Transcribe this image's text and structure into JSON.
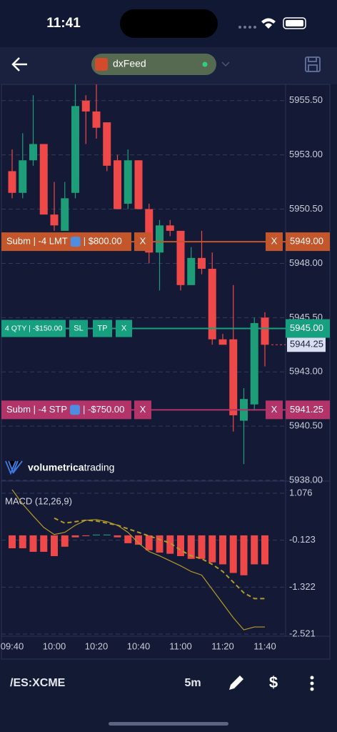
{
  "status_bar": {
    "time": "11:41"
  },
  "header": {
    "feed": "dxFeed"
  },
  "watermark": {
    "brand": "volumetrica",
    "suffix": "trading"
  },
  "footer": {
    "symbol": "/ES:XCME",
    "timeframe": "5m",
    "price_button": "$"
  },
  "chart_data": [
    {
      "type": "candlestick",
      "up_color": "#1e9e78",
      "down_color": "#ef4848",
      "grid": true,
      "categories": [
        "09:40",
        null,
        null,
        null,
        "10:00",
        null,
        null,
        null,
        "10:20",
        null,
        null,
        null,
        "10:40",
        null,
        null,
        null,
        "11:00",
        null,
        null,
        null,
        "11:20",
        null,
        null,
        null,
        "11:40"
      ],
      "open": [
        5952.25,
        5951.25,
        5952.75,
        5953.5,
        5950.25,
        5949.5,
        5951.25,
        5955.5,
        5955,
        5954.5,
        5952.75,
        5950.75,
        5952.75,
        5950.5,
        5948.5,
        5949.75,
        5949.5,
        5947,
        5948.25,
        5947.75,
        5944.5,
        5944.5,
        5940.75,
        5941.5,
        5945.5
      ],
      "high": [
        5953.25,
        5954,
        5955.75,
        5953.5,
        5951.75,
        5951.75,
        5956.25,
        5955.75,
        5956.25,
        5954.5,
        5953,
        5953.25,
        5952.75,
        5950.75,
        5950,
        5950,
        5949.5,
        5948.75,
        5949.5,
        5948.5,
        5944.75,
        5947,
        5942.25,
        5945.5,
        5945.75
      ],
      "low": [
        5951,
        5951,
        5952.5,
        5950.25,
        5949.5,
        5949.5,
        5951,
        5953.5,
        5953.75,
        5952.25,
        5950.5,
        5950.5,
        5950.5,
        5948,
        5946.75,
        5949.25,
        5946.75,
        5947,
        5947.5,
        5944.25,
        5944.25,
        5940.25,
        5938.75,
        5941.25,
        5943.25
      ],
      "close": [
        5951.25,
        5952.75,
        5953.5,
        5950.25,
        5949.75,
        5951,
        5955.25,
        5955,
        5954.25,
        5952.5,
        5950.5,
        5952.75,
        5950.5,
        5948.5,
        5949.75,
        5949.5,
        5947,
        5948.25,
        5947.75,
        5944.5,
        5944.25,
        5941,
        5941.75,
        5945.25,
        5944.25
      ],
      "ylim": [
        5938,
        5956.25
      ],
      "yticks": [
        {
          "value": 5938,
          "label": "5938.00"
        },
        {
          "value": 5940.5,
          "label": "5940.50"
        },
        {
          "value": 5943,
          "label": "5943.00"
        },
        {
          "value": 5945.5,
          "label": "5945.50"
        },
        {
          "value": 5948,
          "label": "5948.00"
        },
        {
          "value": 5950.5,
          "label": "5950.50"
        },
        {
          "value": 5953,
          "label": "5953.00"
        },
        {
          "value": 5955.5,
          "label": "5955.50"
        }
      ],
      "last_price": 5944.25,
      "orders": [
        {
          "text": "Subm | -4 LMT",
          "amount": "| $800.00",
          "cancel": "X",
          "color": "#c4562b",
          "price": {
            "value": 5949,
            "label": "5949.00"
          }
        },
        {
          "text": "Subm | -4 STP",
          "amount": "| -$750.00",
          "cancel": "X",
          "color": "#b23468",
          "price": {
            "value": 5941.25,
            "label": "5941.25"
          }
        }
      ],
      "position": {
        "text": "4 QTY | -$150.00",
        "buttons": [
          "SL",
          "TP",
          "X"
        ],
        "color": "#17a07f",
        "price": {
          "value": 5945,
          "label": "5945.00"
        }
      }
    },
    {
      "type": "macd",
      "title": "MACD (12,26,9)",
      "ylim": [
        -2.521,
        1.076
      ],
      "yticks": [
        -2.521,
        -1.322,
        -0.123,
        1.076
      ],
      "up_color": "#1e9e78",
      "down_color": "#ef4848",
      "histogram": [
        -0.33,
        -0.33,
        -0.42,
        -0.42,
        -0.53,
        -0.29,
        -0.05,
        -0.02,
        0.02,
        0.02,
        -0.05,
        -0.2,
        -0.24,
        -0.38,
        -0.44,
        -0.47,
        -0.53,
        -0.6,
        -0.6,
        -0.69,
        -0.74,
        -0.96,
        -1.02,
        -0.74,
        -0.74
      ],
      "macd": {
        "color": "#b39a2a",
        "values": [
          1.167,
          0.8,
          0.495,
          0.204,
          0.022,
          0.077,
          0.259,
          0.386,
          0.404,
          0.35,
          0.259,
          0.077,
          -0.196,
          -0.414,
          -0.523,
          -0.65,
          -0.778,
          -0.923,
          -1.014,
          -1.377,
          -1.741,
          -2.104,
          -2.413,
          -2.34,
          -2.34
        ]
      },
      "signal": {
        "color": "#b39a2a",
        "values": [
          null,
          null,
          null,
          null,
          0.44,
          0.313,
          0.35,
          0.386,
          0.368,
          0.313,
          0.259,
          0.168,
          0.077,
          -0.014,
          -0.105,
          -0.196,
          -0.377,
          -0.523,
          -0.596,
          -0.741,
          -0.923,
          -1.196,
          -1.468,
          -1.614,
          -1.614
        ]
      }
    }
  ]
}
